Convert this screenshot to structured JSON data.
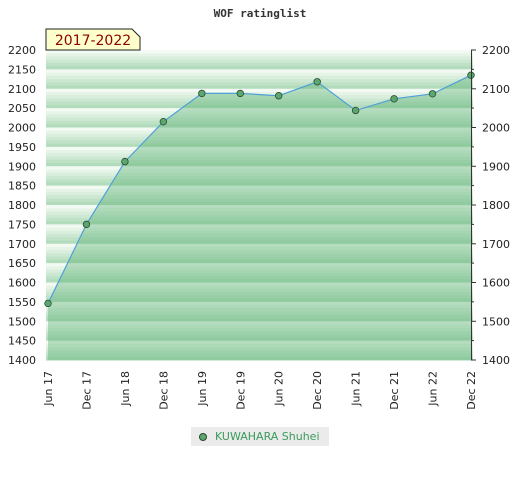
{
  "colors": {
    "stripe_light": "#f3faf3",
    "stripe_dark": "#b2dcbc",
    "area_fill": "#5fb377",
    "line": "#4ea0d8",
    "marker": "#5aa870",
    "legend_text": "#3a9a5c",
    "badge_bg": "#ffffcc"
  },
  "chart_data": {
    "type": "area",
    "title": "WOF ratinglist",
    "period_label": "2017-2022",
    "x": [
      "Jun 17",
      "Dec 17",
      "Jun 18",
      "Dec 18",
      "Jun 19",
      "Dec 19",
      "Jun 20",
      "Dec 20",
      "Jun 21",
      "Dec 21",
      "Jun 22",
      "Dec 22"
    ],
    "series": [
      {
        "name": "KUWAHARA Shuhei",
        "values": [
          1546,
          1750,
          1912,
          2015,
          2088,
          2088,
          2082,
          2118,
          2044,
          2074,
          2087,
          2135
        ]
      }
    ],
    "y_left_ticks": [
      1400,
      1450,
      1500,
      1550,
      1600,
      1650,
      1700,
      1750,
      1800,
      1850,
      1900,
      1950,
      2000,
      2050,
      2100,
      2150,
      2200
    ],
    "y_right_ticks": [
      1400,
      1500,
      1600,
      1700,
      1800,
      1900,
      2000,
      2100,
      2200
    ],
    "ylim": [
      1400,
      2200
    ],
    "grid": false,
    "legend": "bottom-center"
  }
}
